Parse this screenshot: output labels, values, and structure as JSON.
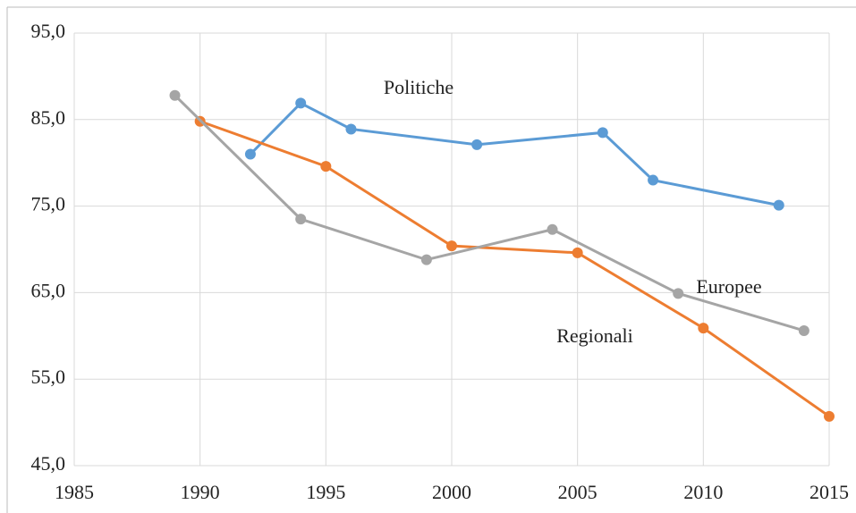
{
  "chart_data": {
    "type": "line",
    "annotations": [
      "Politiche",
      "Europee",
      "Regionali"
    ],
    "series": [
      {
        "name": "Politiche",
        "color": "#5b9bd5",
        "x": [
          1992,
          1994,
          1996,
          2001,
          2006,
          2008,
          2013
        ],
        "values": [
          81.0,
          86.9,
          83.9,
          82.1,
          83.5,
          78.0,
          75.1
        ]
      },
      {
        "name": "Regionali",
        "color": "#ed7d31",
        "x": [
          1990,
          1995,
          2000,
          2005,
          2010,
          2015
        ],
        "values": [
          84.8,
          79.6,
          70.4,
          69.6,
          60.9,
          50.7
        ]
      },
      {
        "name": "Europee",
        "color": "#a5a5a5",
        "x": [
          1989,
          1994,
          1999,
          2004,
          2009,
          2014
        ],
        "values": [
          87.8,
          73.5,
          68.8,
          72.3,
          64.9,
          60.6
        ]
      }
    ],
    "xlim": [
      1985,
      2015
    ],
    "xticks": [
      1985,
      1990,
      1995,
      2000,
      2005,
      2010,
      2015
    ],
    "ylim": [
      45,
      95
    ],
    "yticks": [
      {
        "value": 45,
        "label": "45,0"
      },
      {
        "value": 55,
        "label": "55,0"
      },
      {
        "value": 65,
        "label": "65,0"
      },
      {
        "value": 75,
        "label": "75,0"
      },
      {
        "value": 85,
        "label": "85,0"
      },
      {
        "value": 95,
        "label": "95,0"
      }
    ],
    "grid": true
  }
}
